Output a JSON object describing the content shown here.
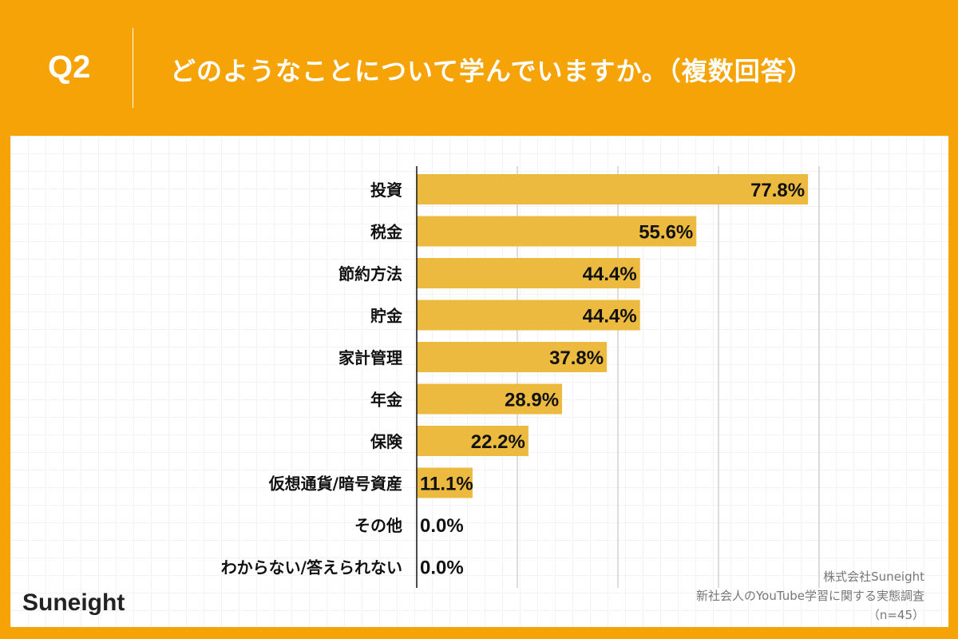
{
  "header": {
    "question_number": "Q2",
    "title": "どのようなことについて学んでいますか。（複数回答）"
  },
  "chart_data": {
    "type": "bar",
    "orientation": "horizontal",
    "categories": [
      "投資",
      "税金",
      "節約方法",
      "貯金",
      "家計管理",
      "年金",
      "保険",
      "仮想通貨/暗号資産",
      "その他",
      "わからない/答えられない"
    ],
    "values": [
      77.8,
      55.6,
      44.4,
      44.4,
      37.8,
      28.9,
      22.2,
      11.1,
      0.0,
      0.0
    ],
    "value_labels": [
      "77.8%",
      "55.6%",
      "44.4%",
      "44.4%",
      "37.8%",
      "28.9%",
      "22.2%",
      "11.1%",
      "0.0%",
      "0.0%"
    ],
    "xlim": [
      0,
      100
    ],
    "grid_step": 20,
    "grid": true,
    "bar_color": "#EDBA40"
  },
  "footer": {
    "logo": "Suneight",
    "source_lines": [
      "株式会社Suneight",
      "新社会人のYouTube学習に関する実態調査",
      "（n=45）"
    ]
  },
  "colors": {
    "background": "#F5A306",
    "panel": "#FFFFFF",
    "bar": "#EDBA40"
  }
}
